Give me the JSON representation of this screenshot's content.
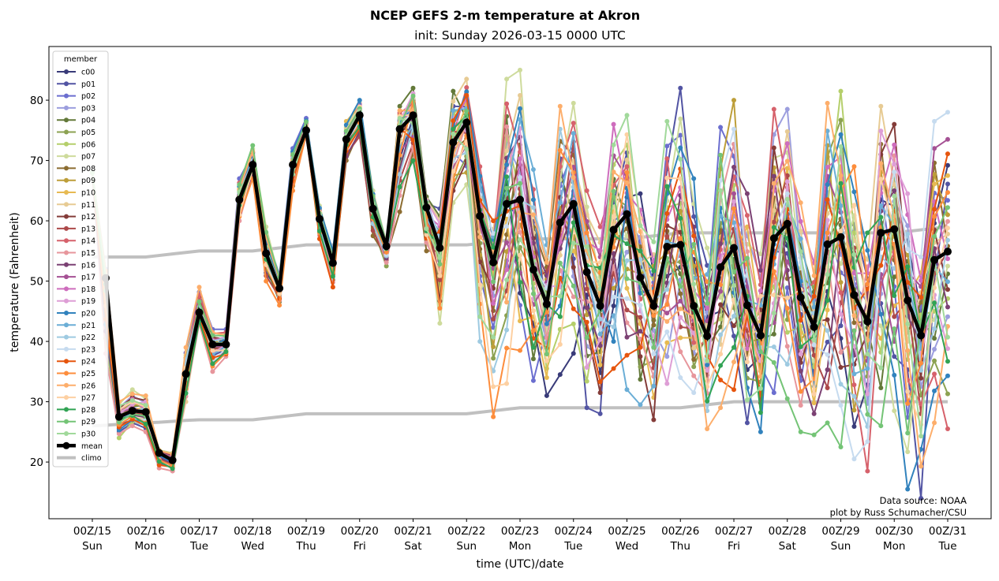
{
  "chart_data": {
    "type": "line",
    "title": "NCEP GEFS 2-m temperature at Akron",
    "subtitle": "init: Sunday 2026-03-15 0000 UTC",
    "xlabel": "time (UTC)/date",
    "ylabel": "temperature (Fahrenheit)",
    "ylim": [
      10.6,
      88.9
    ],
    "yticks": [
      20,
      30,
      40,
      50,
      60,
      70,
      80
    ],
    "time_step_hours": 6,
    "xticks": [
      {
        "label": "00Z/15",
        "day": "Sun"
      },
      {
        "label": "00Z/16",
        "day": "Mon"
      },
      {
        "label": "00Z/17",
        "day": "Tue"
      },
      {
        "label": "00Z/18",
        "day": "Wed"
      },
      {
        "label": "00Z/19",
        "day": "Thu"
      },
      {
        "label": "00Z/20",
        "day": "Fri"
      },
      {
        "label": "00Z/21",
        "day": "Sat"
      },
      {
        "label": "00Z/22",
        "day": "Sun"
      },
      {
        "label": "00Z/23",
        "day": "Mon"
      },
      {
        "label": "00Z/24",
        "day": "Tue"
      },
      {
        "label": "00Z/25",
        "day": "Wed"
      },
      {
        "label": "00Z/26",
        "day": "Thu"
      },
      {
        "label": "00Z/27",
        "day": "Fri"
      },
      {
        "label": "00Z/28",
        "day": "Sat"
      },
      {
        "label": "00Z/29",
        "day": "Sun"
      },
      {
        "label": "00Z/30",
        "day": "Mon"
      },
      {
        "label": "00Z/31",
        "day": "Tue"
      }
    ],
    "legend": {
      "title": "member",
      "placement": "upper-left"
    },
    "members": [
      {
        "name": "c00",
        "color": "#393b79"
      },
      {
        "name": "p01",
        "color": "#5254a3"
      },
      {
        "name": "p02",
        "color": "#6b6ecf"
      },
      {
        "name": "p03",
        "color": "#9c9ede"
      },
      {
        "name": "p04",
        "color": "#637939"
      },
      {
        "name": "p05",
        "color": "#8ca252"
      },
      {
        "name": "p06",
        "color": "#b5cf6b"
      },
      {
        "name": "p07",
        "color": "#cedb9c"
      },
      {
        "name": "p08",
        "color": "#8c6d31"
      },
      {
        "name": "p09",
        "color": "#bd9e39"
      },
      {
        "name": "p10",
        "color": "#e7ba52"
      },
      {
        "name": "p11",
        "color": "#e7cb94"
      },
      {
        "name": "p12",
        "color": "#843c39"
      },
      {
        "name": "p13",
        "color": "#ad494a"
      },
      {
        "name": "p14",
        "color": "#d6616b"
      },
      {
        "name": "p15",
        "color": "#e7969c"
      },
      {
        "name": "p16",
        "color": "#7b4173"
      },
      {
        "name": "p17",
        "color": "#a55194"
      },
      {
        "name": "p18",
        "color": "#ce6dbd"
      },
      {
        "name": "p19",
        "color": "#de9ed6"
      },
      {
        "name": "p20",
        "color": "#3182bd"
      },
      {
        "name": "p21",
        "color": "#6baed6"
      },
      {
        "name": "p22",
        "color": "#9ecae1"
      },
      {
        "name": "p23",
        "color": "#c6dbef"
      },
      {
        "name": "p24",
        "color": "#e6550d"
      },
      {
        "name": "p25",
        "color": "#fd8d3c"
      },
      {
        "name": "p26",
        "color": "#fdae6b"
      },
      {
        "name": "p27",
        "color": "#fdd0a2"
      },
      {
        "name": "p28",
        "color": "#31a354"
      },
      {
        "name": "p29",
        "color": "#74c476"
      },
      {
        "name": "p30",
        "color": "#a1d99b"
      }
    ],
    "ensemble_min": [
      68,
      38,
      24,
      26,
      25,
      19,
      18.5,
      30,
      43,
      35,
      37.5,
      60,
      67,
      50,
      46,
      65,
      74,
      57,
      49,
      70,
      74,
      57.5,
      52.5,
      61.5,
      70,
      55,
      43,
      63,
      66,
      40,
      27.5,
      33,
      38.5,
      33.5,
      31,
      34.5,
      38,
      29,
      28,
      35.5,
      32,
      29.5,
      27,
      33,
      34,
      31.5,
      25.5,
      29,
      32,
      26.5,
      25,
      31.5,
      30.5,
      25,
      24.5,
      26.5,
      22.5,
      20.5,
      18.5,
      26,
      28.5,
      15.5,
      14,
      26.5,
      25.5
    ],
    "ensemble_max": [
      68,
      52,
      30,
      32,
      31,
      22,
      21.5,
      39,
      49,
      42,
      42,
      67,
      72.5,
      59,
      51,
      72,
      77,
      62.5,
      55,
      76.5,
      80,
      65,
      56.5,
      79,
      82,
      64,
      62,
      81.5,
      83.5,
      69,
      60,
      83.5,
      85,
      68.5,
      56,
      79,
      79.5,
      65,
      59,
      76,
      77.5,
      64.5,
      56.5,
      76.5,
      82,
      67,
      55.5,
      75.5,
      80,
      64.5,
      54.5,
      78.5,
      78.5,
      63,
      53,
      79.5,
      81.5,
      69,
      58,
      79,
      76,
      64.5,
      54,
      76.5,
      78
    ],
    "mean": {
      "name": "mean",
      "color": "#000000",
      "values": [
        null,
        50.5,
        27.5,
        28.5,
        28.3,
        21.5,
        20.3,
        34.6,
        44.8,
        39.5,
        39.5,
        63.5,
        69.3,
        54.6,
        48.8,
        69.3,
        75,
        60.3,
        53,
        73.5,
        77.5,
        62,
        55.8,
        75.2,
        77.5,
        62.2,
        55.5,
        73,
        76.3,
        60.8,
        53.1,
        62.8,
        63.5,
        51.9,
        46.2,
        59.7,
        62.8,
        51.5,
        45.9,
        58.5,
        61.1,
        50.6,
        45.9,
        55.7,
        56,
        45.9,
        40.9,
        52.3,
        55.5,
        46,
        41,
        57.1,
        59.5,
        47.3,
        42.4,
        56.1,
        57.3,
        47.7,
        43.3,
        58,
        58.6,
        46.8,
        41,
        53.5,
        54.9
      ]
    },
    "climo": {
      "name": "climo",
      "color": "#c0c0c0",
      "high": [
        54,
        54,
        54,
        54,
        54,
        54.25,
        54.5,
        54.75,
        55,
        55,
        55,
        55,
        55,
        55.25,
        55.5,
        55.75,
        56,
        56,
        56,
        56,
        56,
        56,
        56,
        56,
        56,
        56,
        56,
        56,
        56,
        56.25,
        56.5,
        56.75,
        57,
        57,
        57,
        57,
        57,
        57,
        57,
        57,
        57,
        57.25,
        57.5,
        57.75,
        58,
        58,
        58,
        58,
        58,
        58,
        58,
        58,
        58,
        58,
        58,
        58,
        58,
        58,
        58,
        58,
        58,
        58.25,
        58.5,
        58.75,
        59
      ],
      "low": [
        26,
        26.1,
        26.25,
        26.4,
        26.5,
        26.6,
        26.75,
        26.9,
        27,
        27,
        27,
        27,
        27,
        27.25,
        27.5,
        27.75,
        28,
        28,
        28,
        28,
        28,
        28,
        28,
        28,
        28,
        28,
        28,
        28,
        28,
        28.25,
        28.5,
        28.75,
        29,
        29,
        29,
        29,
        29,
        29,
        29,
        29,
        29,
        29,
        29,
        29,
        29,
        29.25,
        29.5,
        29.75,
        30,
        30,
        30,
        30,
        30,
        30,
        30,
        30,
        30,
        30,
        30,
        30,
        30,
        30,
        30,
        30,
        30
      ]
    }
  },
  "annotations": {
    "source": "Data source: NOAA",
    "credit": "plot by Russ Schumacher/CSU"
  }
}
